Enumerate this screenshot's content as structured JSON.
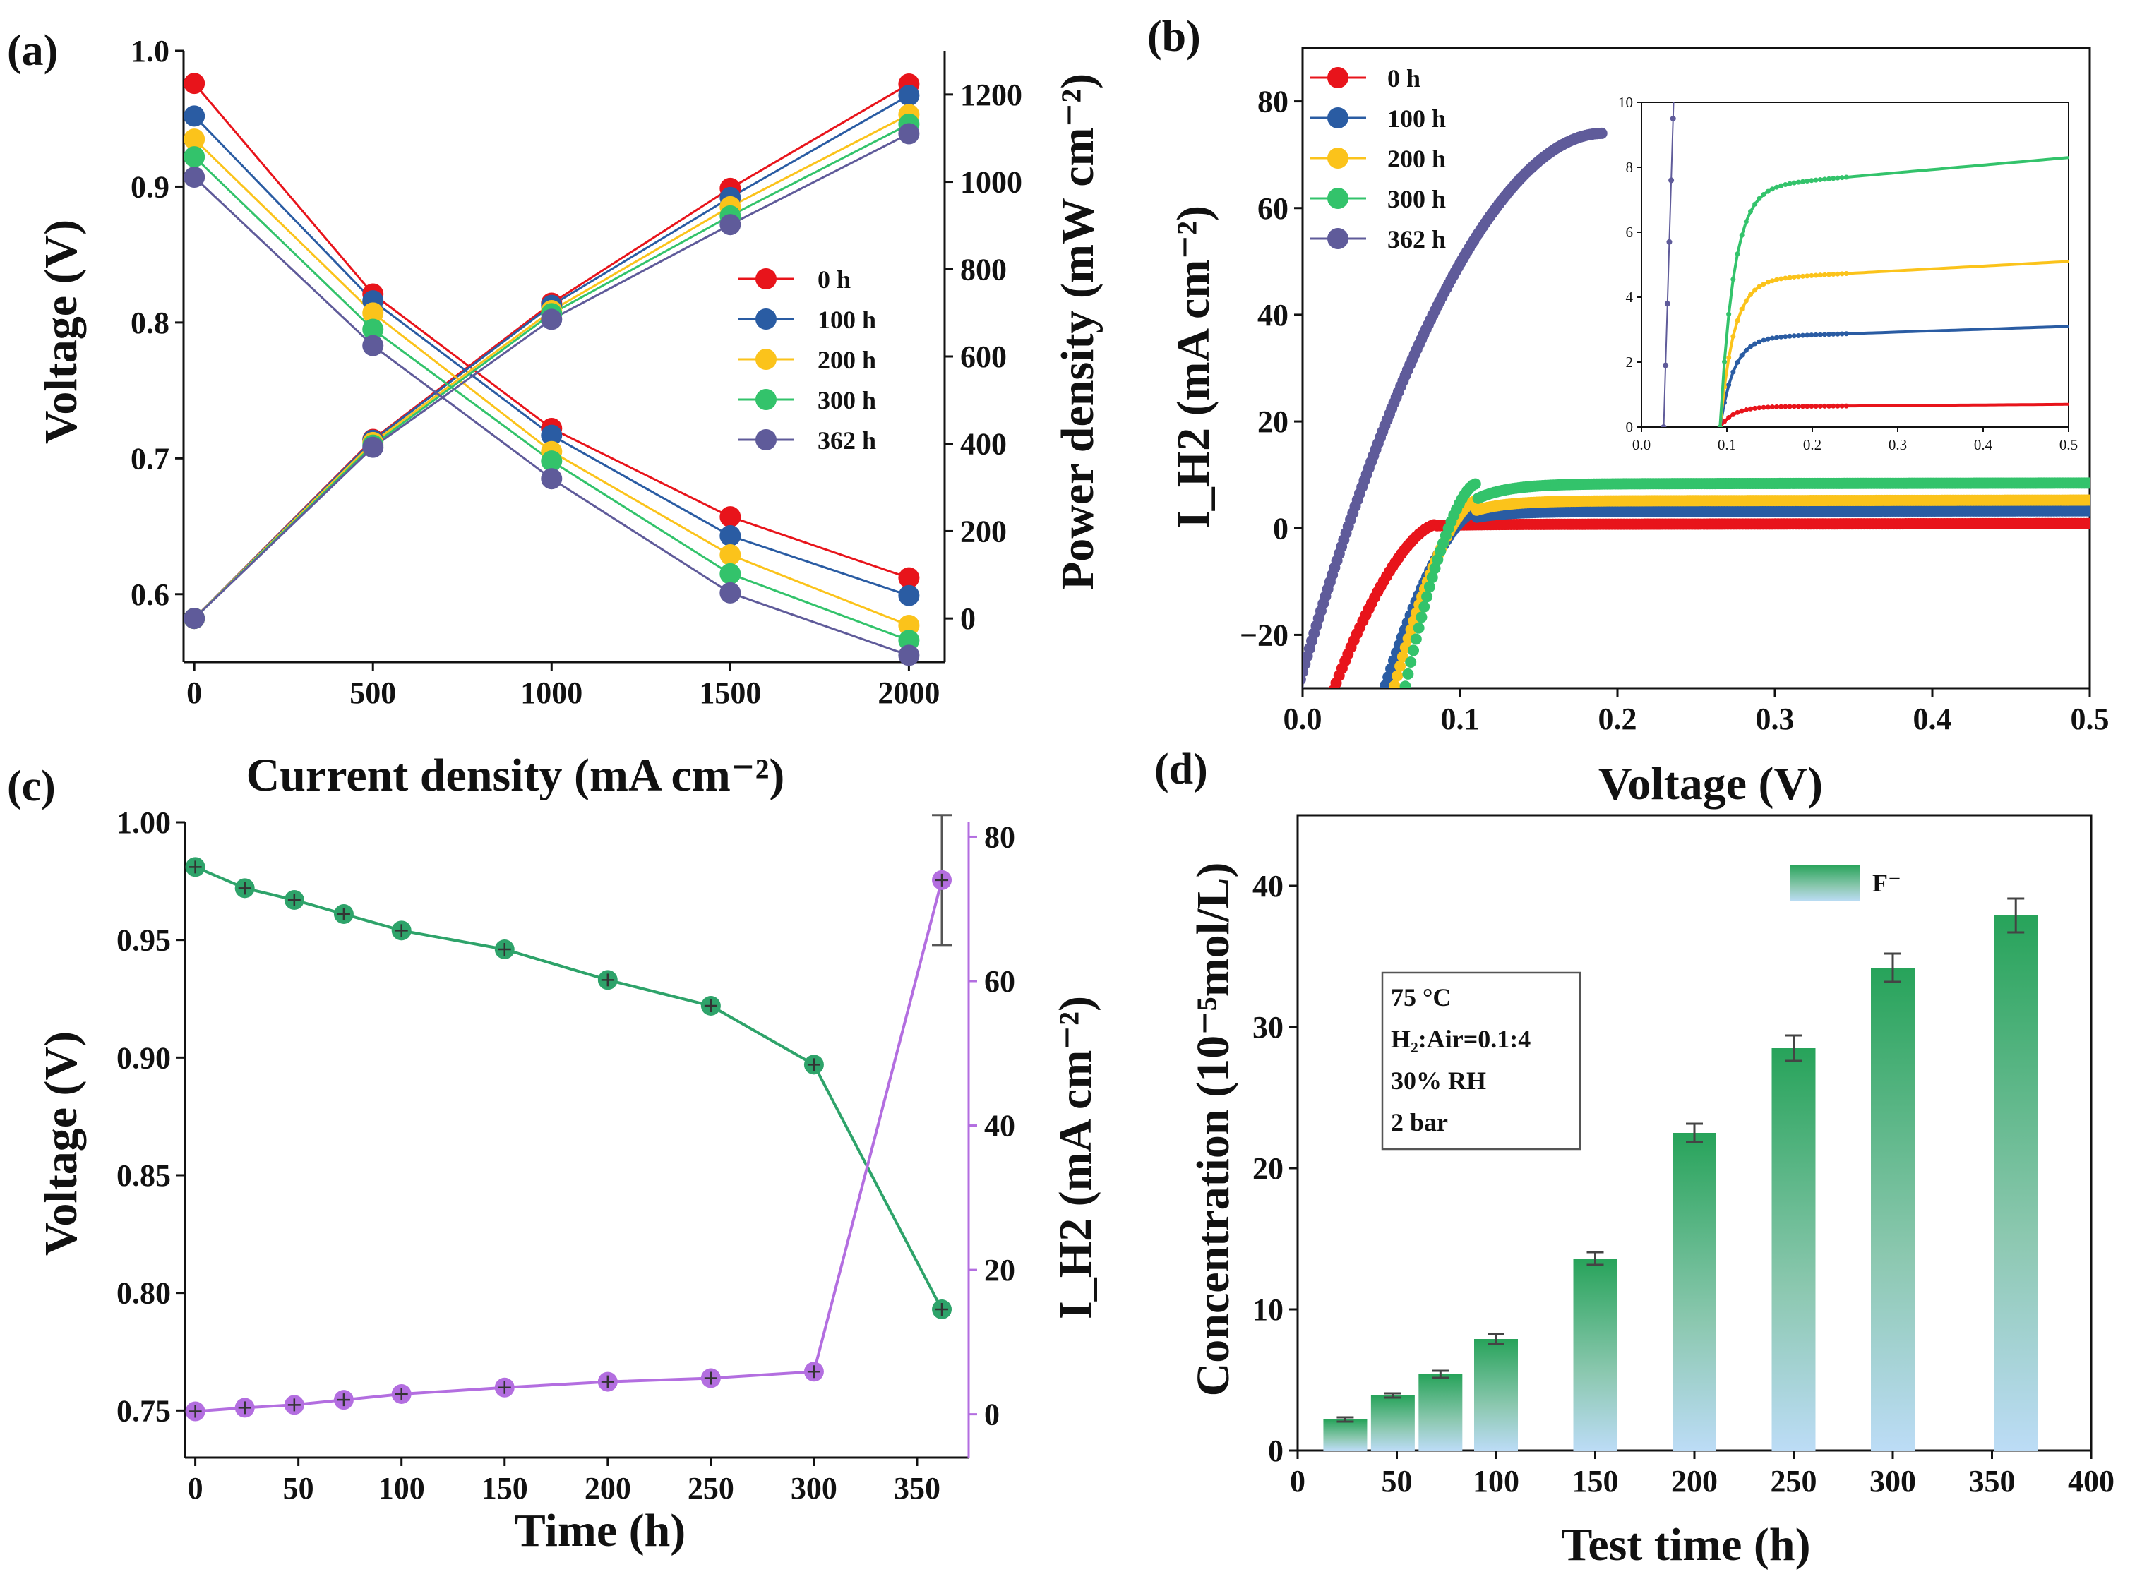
{
  "chart_data": [
    {
      "panel": "(a)",
      "type": "line",
      "xlabel": "Current density (mA cm⁻²)",
      "ylabel_left": "Voltage (V)",
      "ylabel_right": "Power density (mW cm⁻²)",
      "xlim": [
        -30,
        2100
      ],
      "ylim_left": [
        0.55,
        1.0
      ],
      "ylim_right": [
        -100,
        1300
      ],
      "xticks": [
        0,
        500,
        1000,
        1500,
        2000
      ],
      "yticks_left": [
        0.6,
        0.7,
        0.8,
        0.9,
        1.0
      ],
      "yticks_right": [
        0,
        200,
        400,
        600,
        800,
        1000,
        1200
      ],
      "x": [
        0,
        500,
        1000,
        1500,
        2000
      ],
      "legend_position": "center-right",
      "series": [
        {
          "name": "0 h",
          "color": "#e8141b",
          "voltage": [
            0.976,
            0.821,
            0.722,
            0.657,
            0.612
          ],
          "power": [
            0,
            410,
            722,
            985,
            1224
          ]
        },
        {
          "name": "100 h",
          "color": "#2a5ca3",
          "voltage": [
            0.952,
            0.816,
            0.717,
            0.643,
            0.599
          ],
          "power": [
            0,
            408,
            717,
            964,
            1198
          ]
        },
        {
          "name": "200 h",
          "color": "#fbc31b",
          "voltage": [
            0.935,
            0.807,
            0.705,
            0.629,
            0.577
          ],
          "power": [
            0,
            403,
            705,
            943,
            1154
          ]
        },
        {
          "name": "300 h",
          "color": "#33c36b",
          "voltage": [
            0.922,
            0.795,
            0.698,
            0.615,
            0.566
          ],
          "power": [
            0,
            397,
            698,
            922,
            1132
          ]
        },
        {
          "name": "362 h",
          "color": "#5f5b9a",
          "voltage": [
            0.907,
            0.783,
            0.685,
            0.601,
            0.555
          ],
          "power": [
            0,
            392,
            685,
            902,
            1110
          ]
        }
      ]
    },
    {
      "panel": "(b)",
      "type": "scatter",
      "xlabel": "Voltage (V)",
      "ylabel": "I_H2 (mA cm⁻²)",
      "xlim": [
        0,
        0.5
      ],
      "ylim": [
        -30,
        90
      ],
      "xticks": [
        0.0,
        0.1,
        0.2,
        0.3,
        0.4,
        0.5
      ],
      "yticks": [
        -20,
        0,
        20,
        40,
        60,
        80
      ],
      "legend_position": "top-left",
      "series": [
        {
          "name": "0 h",
          "color": "#e8141b",
          "onset": 0.02,
          "knee": 0.085,
          "plateau": 0.7,
          "xmax": 0.5
        },
        {
          "name": "100 h",
          "color": "#2a5ca3",
          "onset": 0.052,
          "knee": 0.11,
          "plateau": 3.1,
          "xmax": 0.5
        },
        {
          "name": "200 h",
          "color": "#fbc31b",
          "onset": 0.058,
          "knee": 0.11,
          "plateau": 5.1,
          "xmax": 0.5
        },
        {
          "name": "300 h",
          "color": "#33c36b",
          "onset": 0.065,
          "knee": 0.11,
          "plateau": 8.3,
          "xmax": 0.5
        },
        {
          "name": "362 h",
          "color": "#5f5b9a",
          "onset": -0.003,
          "knee": 0.19,
          "plateau": 74,
          "xmax": 0.19
        }
      ],
      "inset": {
        "xlim": [
          0,
          0.5
        ],
        "ylim": [
          0,
          10
        ],
        "xticks": [
          0.0,
          0.1,
          0.2,
          0.3,
          0.4,
          0.5
        ],
        "yticks": [
          0,
          2,
          4,
          6,
          8,
          10
        ]
      }
    },
    {
      "panel": "(c)",
      "type": "line",
      "xlabel": "Time (h)",
      "ylabel_left": "Voltage (V)",
      "ylabel_right": "I_H2 (mA cm⁻²)",
      "xlim": [
        -5,
        375
      ],
      "ylim_left": [
        0.73,
        1.0
      ],
      "ylim_right": [
        -6,
        82
      ],
      "xticks": [
        0,
        50,
        100,
        150,
        200,
        250,
        300,
        350
      ],
      "yticks_left": [
        0.75,
        0.8,
        0.85,
        0.9,
        0.95,
        1.0
      ],
      "yticks_right": [
        0,
        20,
        40,
        60,
        80
      ],
      "x": [
        0,
        24,
        48,
        72,
        100,
        150,
        200,
        250,
        300,
        362
      ],
      "series": [
        {
          "name": "Voltage",
          "axis": "left",
          "color": "#2ea36a",
          "values": [
            0.981,
            0.972,
            0.967,
            0.961,
            0.954,
            0.946,
            0.933,
            0.922,
            0.897,
            0.793
          ]
        },
        {
          "name": "I_H2",
          "axis": "right",
          "color": "#b36ee0",
          "values": [
            0.4,
            0.9,
            1.3,
            2.0,
            2.8,
            3.7,
            4.5,
            5.0,
            5.9,
            74
          ],
          "error_last": 9
        }
      ]
    },
    {
      "panel": "(d)",
      "type": "bar",
      "xlabel": "Test time (h)",
      "ylabel": "Concentration (10⁻⁵mol/L)",
      "xlim": [
        0,
        400
      ],
      "ylim": [
        0,
        45
      ],
      "xticks": [
        0,
        50,
        100,
        150,
        200,
        250,
        300,
        350,
        400
      ],
      "yticks": [
        0,
        10,
        20,
        30,
        40
      ],
      "legend": "F⁻",
      "bars": [
        {
          "x": 24,
          "value": 2.2,
          "err": 0.15
        },
        {
          "x": 48,
          "value": 3.9,
          "err": 0.15
        },
        {
          "x": 72,
          "value": 5.4,
          "err": 0.25
        },
        {
          "x": 100,
          "value": 7.9,
          "err": 0.35
        },
        {
          "x": 150,
          "value": 13.6,
          "err": 0.45
        },
        {
          "x": 200,
          "value": 22.5,
          "err": 0.65
        },
        {
          "x": 250,
          "value": 28.5,
          "err": 0.9
        },
        {
          "x": 300,
          "value": 34.2,
          "err": 1.0
        },
        {
          "x": 362,
          "value": 37.9,
          "err": 1.2
        }
      ],
      "annotation": [
        "75 °C",
        "H₂:Air=0.1:4",
        "30% RH",
        "2 bar"
      ]
    }
  ]
}
